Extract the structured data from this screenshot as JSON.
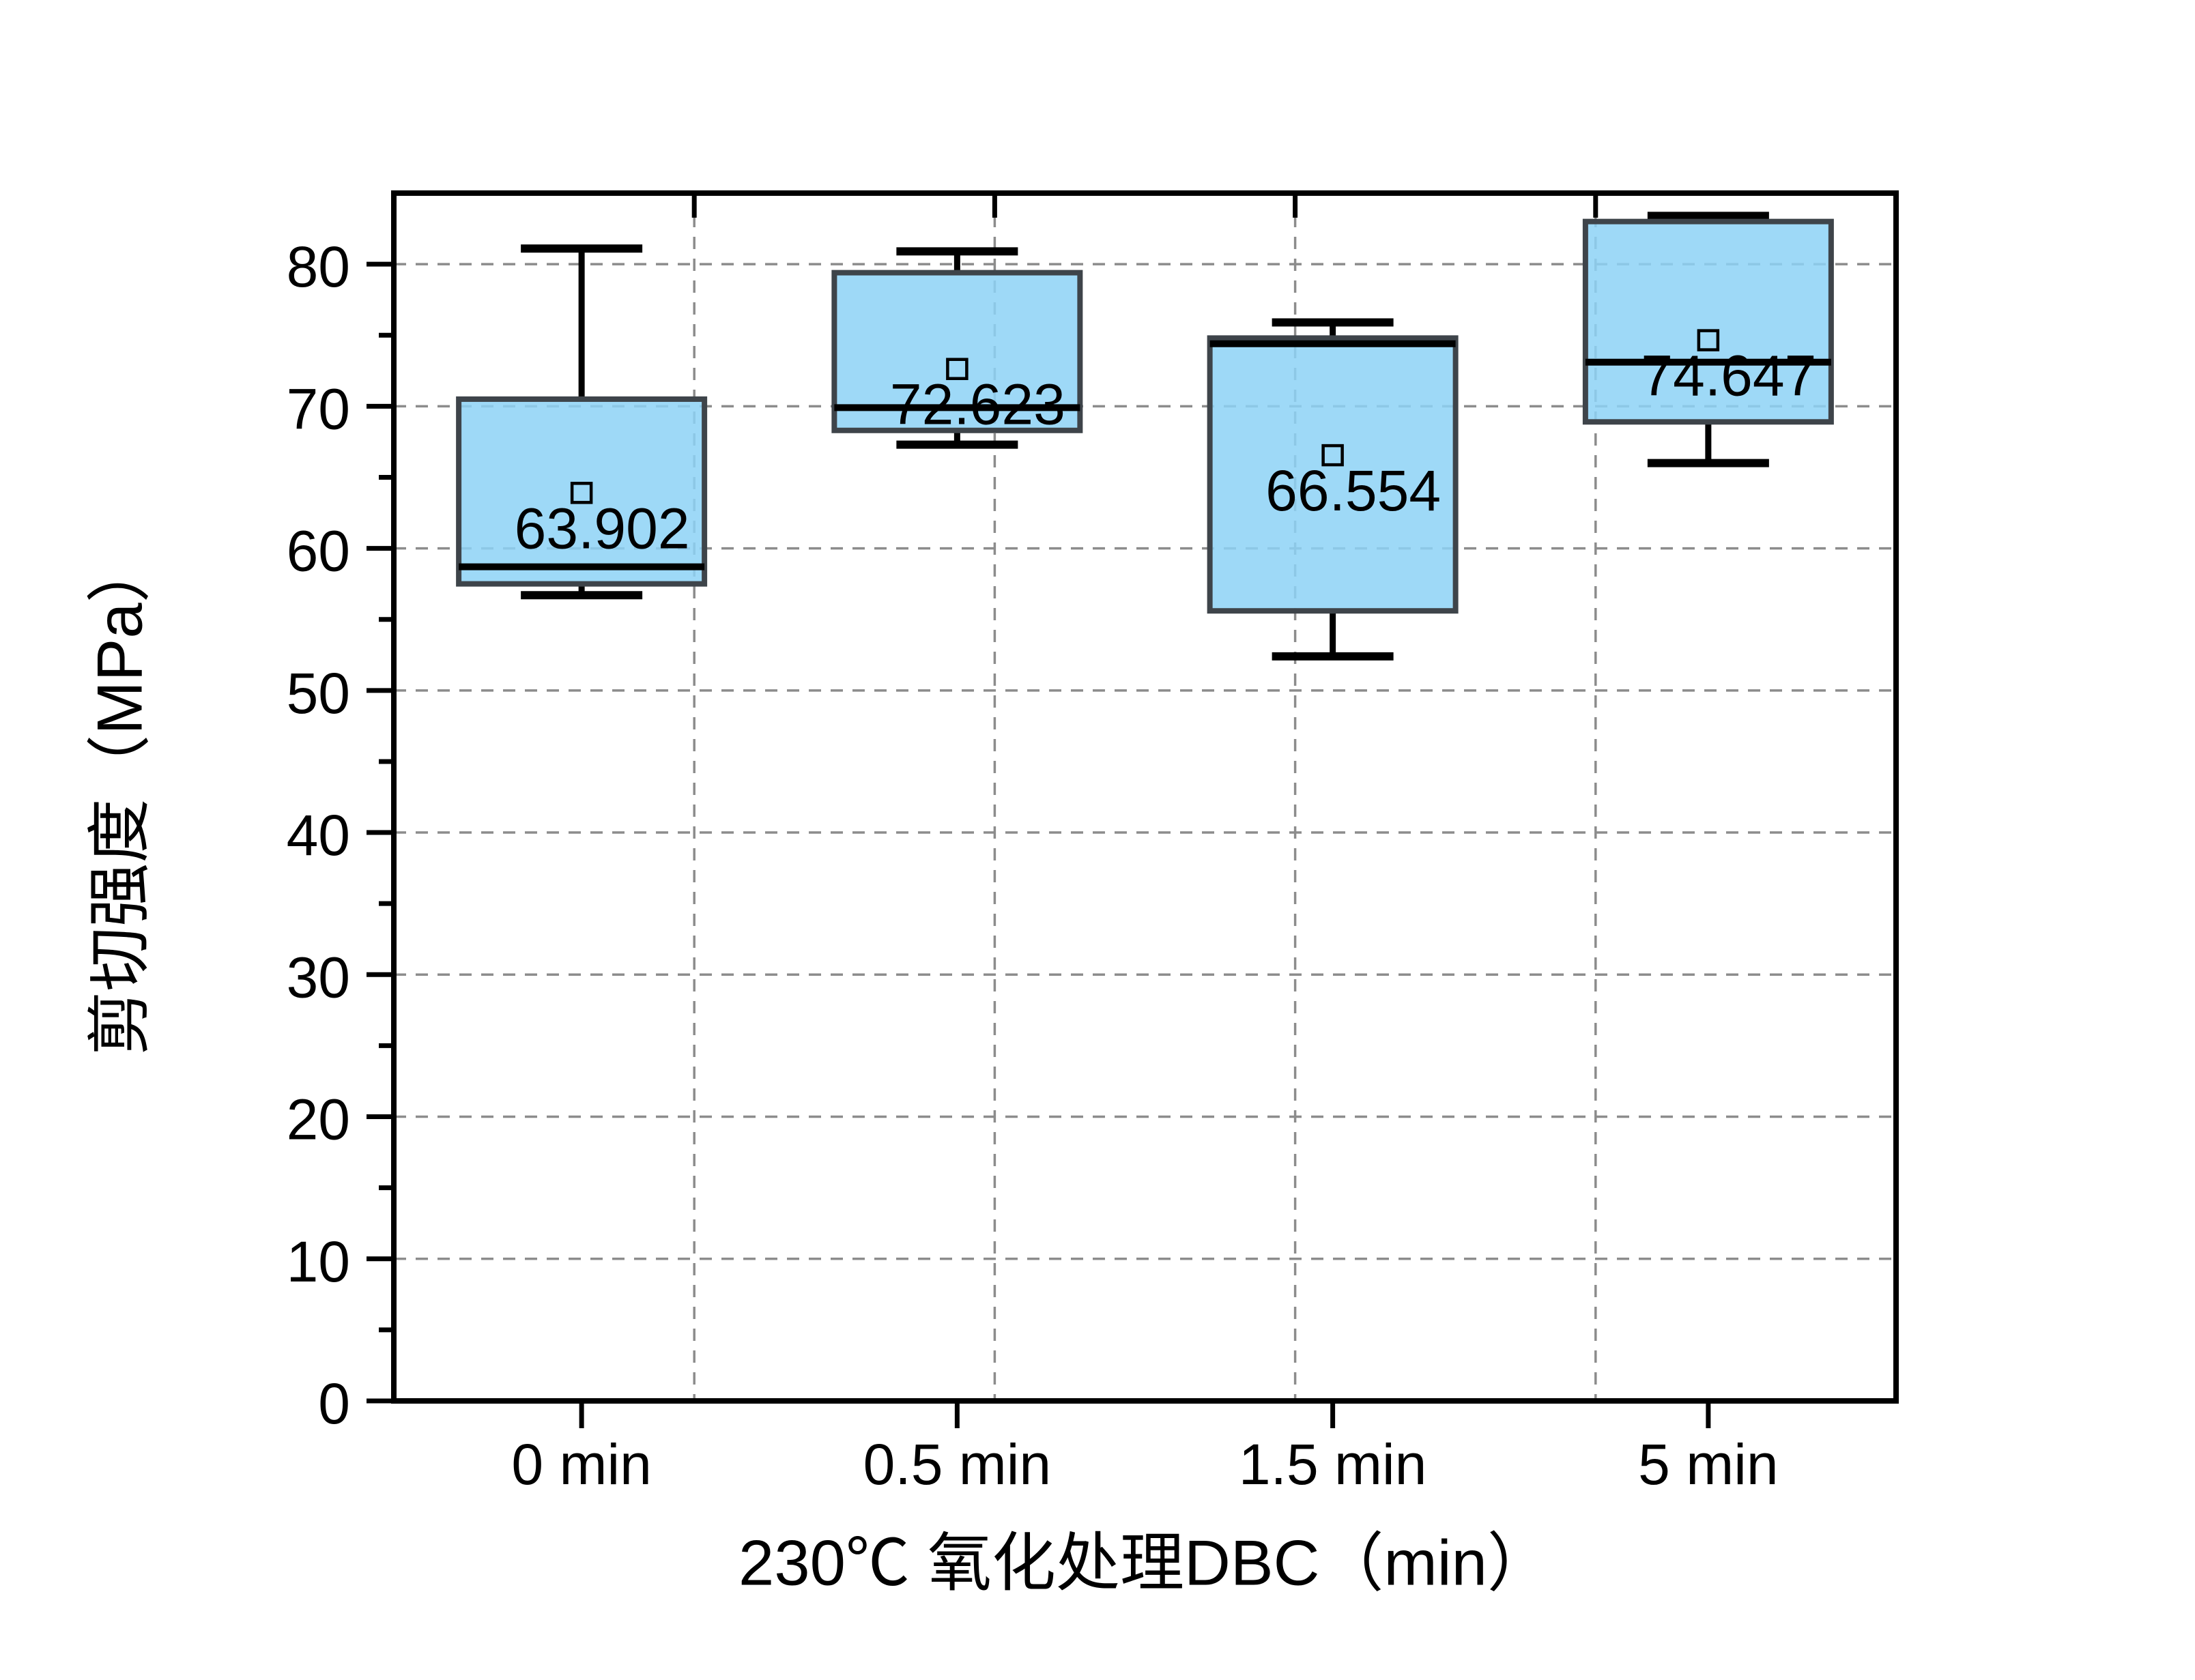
{
  "chart_data": {
    "type": "box",
    "title": "",
    "xlabel": "230℃ 氧化处理DBC（min）",
    "ylabel": "剪切强度（MPa）",
    "categories": [
      "0 min",
      "0.5 min",
      "1.5 min",
      "5 min"
    ],
    "ylim": [
      0,
      85
    ],
    "y_major_ticks": [
      0,
      10,
      20,
      30,
      40,
      50,
      60,
      70,
      80
    ],
    "y_minor_ticks": [
      5,
      15,
      25,
      35,
      45,
      55,
      65,
      75
    ],
    "grid": {
      "horizontal_style": "dashed",
      "vertical_style": "dashed",
      "horizontal_at": [
        10,
        20,
        30,
        40,
        50,
        60,
        70,
        80
      ],
      "vertical_fractions": [
        0.2,
        0.4,
        0.6,
        0.8
      ]
    },
    "legend": "none",
    "boxes": [
      {
        "category": "0 min",
        "whisker_low": 56.7,
        "q1": 57.5,
        "median": 58.7,
        "q3": 70.5,
        "whisker_high": 81.1,
        "mean": 63.902,
        "mean_label": "63.902"
      },
      {
        "category": "0.5 min",
        "whisker_low": 67.3,
        "q1": 68.3,
        "median": 69.9,
        "q3": 79.4,
        "whisker_high": 80.9,
        "mean": 72.623,
        "mean_label": "72.623"
      },
      {
        "category": "1.5 min",
        "whisker_low": 52.4,
        "q1": 55.6,
        "median": 74.4,
        "q3": 74.8,
        "whisker_high": 75.9,
        "mean": 66.554,
        "mean_label": "66.554"
      },
      {
        "category": "5 min",
        "whisker_low": 66.0,
        "q1": 68.9,
        "median": 73.1,
        "q3": 83.0,
        "whisker_high": 83.4,
        "mean": 74.647,
        "mean_label": "74.647"
      }
    ],
    "colors": {
      "box_fill": "#8DD2F6",
      "box_border": "#3E444A",
      "grid": "#8C8C8C",
      "axis": "#000000",
      "median": "#000000",
      "whisker": "#000000",
      "mean_marker": "#000000",
      "text": "#000000"
    }
  }
}
